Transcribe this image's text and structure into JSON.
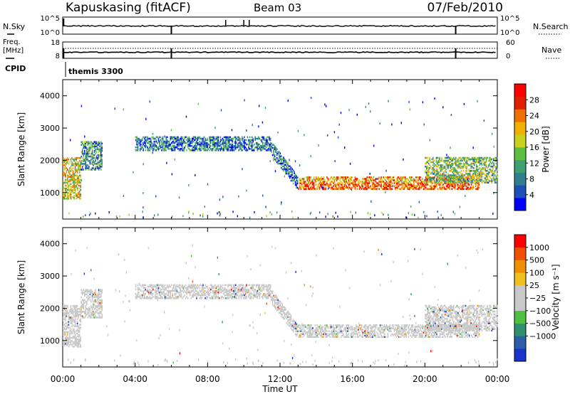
{
  "header": {
    "station": "Kapuskasing (fitACF)",
    "beam": "Beam 03",
    "date": "07/Feb/2010"
  },
  "aux": {
    "nsky_label": "N.Sky",
    "nsearch_label": "N.Search",
    "freq_label_top": "Freq.",
    "freq_label_unit": "[MHz]",
    "nave_label": "Nave",
    "cpid_label": "CPID",
    "cpid_value": "themis 3300",
    "noise_left_ticks": [
      "10^5",
      "10^0"
    ],
    "noise_right_ticks": [
      "10^5",
      "10^0"
    ],
    "freq_left_ticks": [
      "18",
      "8"
    ],
    "freq_right_ticks": [
      "60",
      "0"
    ]
  },
  "x_axis": {
    "ticks": [
      "00:00",
      "04:00",
      "08:00",
      "12:00",
      "16:00",
      "20:00",
      "00:00"
    ],
    "label": "Time UT"
  },
  "power_panel": {
    "ylabel": "Slant Range [km]",
    "yticks": [
      "1000",
      "2000",
      "3000",
      "4000"
    ],
    "cbar_label": "Power [dB]",
    "cbar_ticks": [
      "4",
      "8",
      "12",
      "16",
      "20",
      "24",
      "28"
    ],
    "cbar_colors": [
      "#0000ff",
      "#1f4fb8",
      "#2f7f8f",
      "#3fa070",
      "#5fbf40",
      "#c8d020",
      "#f0b000",
      "#f07000",
      "#e02000",
      "#ff0000"
    ]
  },
  "velocity_panel": {
    "ylabel": "Slant Range [km]",
    "yticks": [
      "1000",
      "2000",
      "3000",
      "4000"
    ],
    "cbar_label": "Velocity [m s⁻¹]",
    "cbar_ticks": [
      "1000",
      "500",
      "100",
      "25",
      "−25",
      "−100",
      "−500",
      "−1000"
    ],
    "cbar_colors": [
      "#1a33cc",
      "#2a5fa8",
      "#2f8f6f",
      "#50c040",
      "#c8c8c8",
      "#c8c8c8",
      "#f0c020",
      "#f09000",
      "#f05000",
      "#ff0000"
    ]
  },
  "chart_data": {
    "type": "heatmap",
    "x_range_hours": [
      0,
      24
    ],
    "y_range_km": [
      180,
      4500
    ],
    "echo_bands": [
      {
        "t_start": 0.0,
        "t_end": 1.0,
        "r_low": 800,
        "r_high": 2100,
        "power_db": 18,
        "velocity": 0
      },
      {
        "t_start": 1.0,
        "t_end": 2.2,
        "r_low": 1700,
        "r_high": 2600,
        "power_db": 10,
        "velocity": 0
      },
      {
        "t_start": 4.0,
        "t_end": 11.5,
        "r_low": 2300,
        "r_high": 2750,
        "power_db": 8,
        "velocity": 0
      },
      {
        "t_start": 11.5,
        "t_end": 13.0,
        "r_low": 1400,
        "r_high": 2500,
        "power_db": 8,
        "velocity": 0
      },
      {
        "t_start": 13.0,
        "t_end": 23.0,
        "r_low": 1100,
        "r_high": 1500,
        "power_db": 22,
        "velocity": 0
      },
      {
        "t_start": 20.0,
        "t_end": 24.0,
        "r_low": 1300,
        "r_high": 2100,
        "power_db": 14,
        "velocity": 0
      }
    ]
  }
}
